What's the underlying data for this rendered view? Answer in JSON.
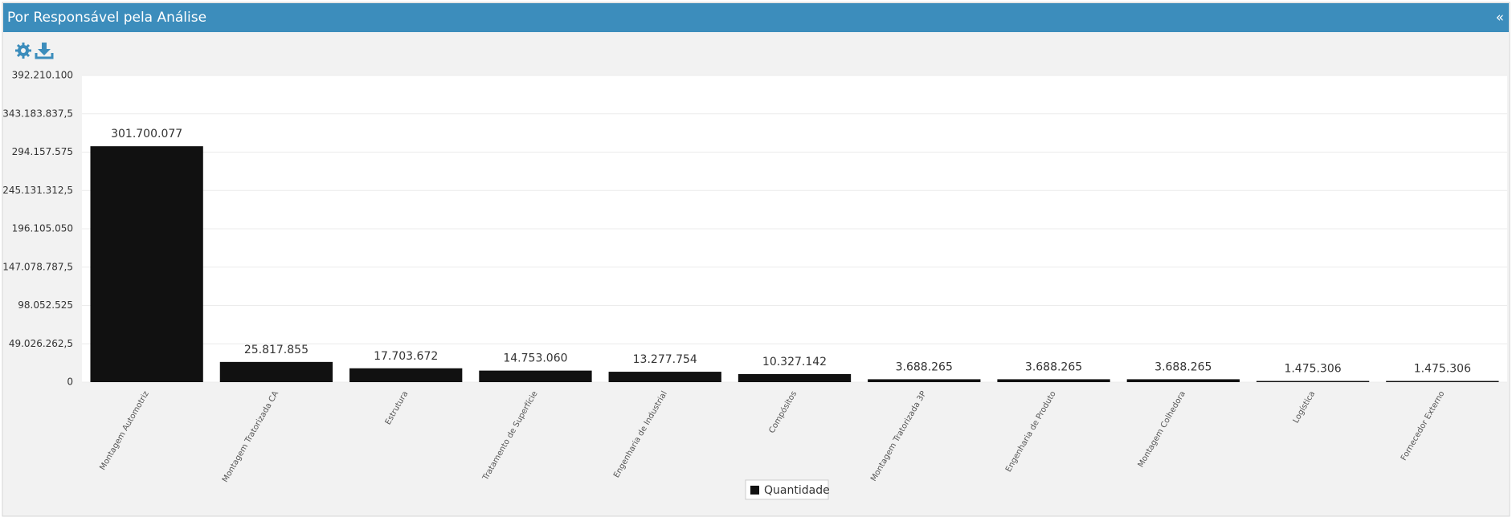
{
  "collapse_icon": "«",
  "chart_data": {
    "type": "bar",
    "title": "Por Responsável pela Análise",
    "categories": [
      "Montagem Automotriz",
      "Montagem Tratorizada CA",
      "Estrutura",
      "Tratamento de Superfície",
      "Engenharia de Industrial",
      "Compósitos",
      "Montagem Tratorizada 3P",
      "Engenharia de Produto",
      "Montagem Colhedora",
      "Logística",
      "Fornecedor Externo"
    ],
    "series": [
      {
        "name": "Quantidade",
        "color": "#111111",
        "values": [
          301700077,
          25817855,
          17703672,
          14753060,
          13277754,
          10327142,
          3688265,
          3688265,
          3688265,
          1475306,
          1475306
        ],
        "value_labels": [
          "301.700.077",
          "25.817.855",
          "17.703.672",
          "14.753.060",
          "13.277.754",
          "10.327.142",
          "3.688.265",
          "3.688.265",
          "3.688.265",
          "1.475.306",
          "1.475.306"
        ]
      }
    ],
    "ylim": [
      0,
      392210100
    ],
    "yticks": [
      0,
      {
        "value": 49026262.5,
        "label": "49.026.262,5"
      },
      {
        "value": 98052525,
        "label": "98.052.525"
      },
      {
        "value": 147078787.5,
        "label": "147.078.787,5"
      },
      {
        "value": 196105050,
        "label": "196.105.050"
      },
      {
        "value": 245131312.5,
        "label": "245.131.312,5"
      },
      {
        "value": 294157575,
        "label": "294.157.575"
      },
      {
        "value": 343183837.5,
        "label": "343.183.837,5"
      },
      {
        "value": 392210100,
        "label": "392.210.100"
      }
    ],
    "grid": true
  }
}
